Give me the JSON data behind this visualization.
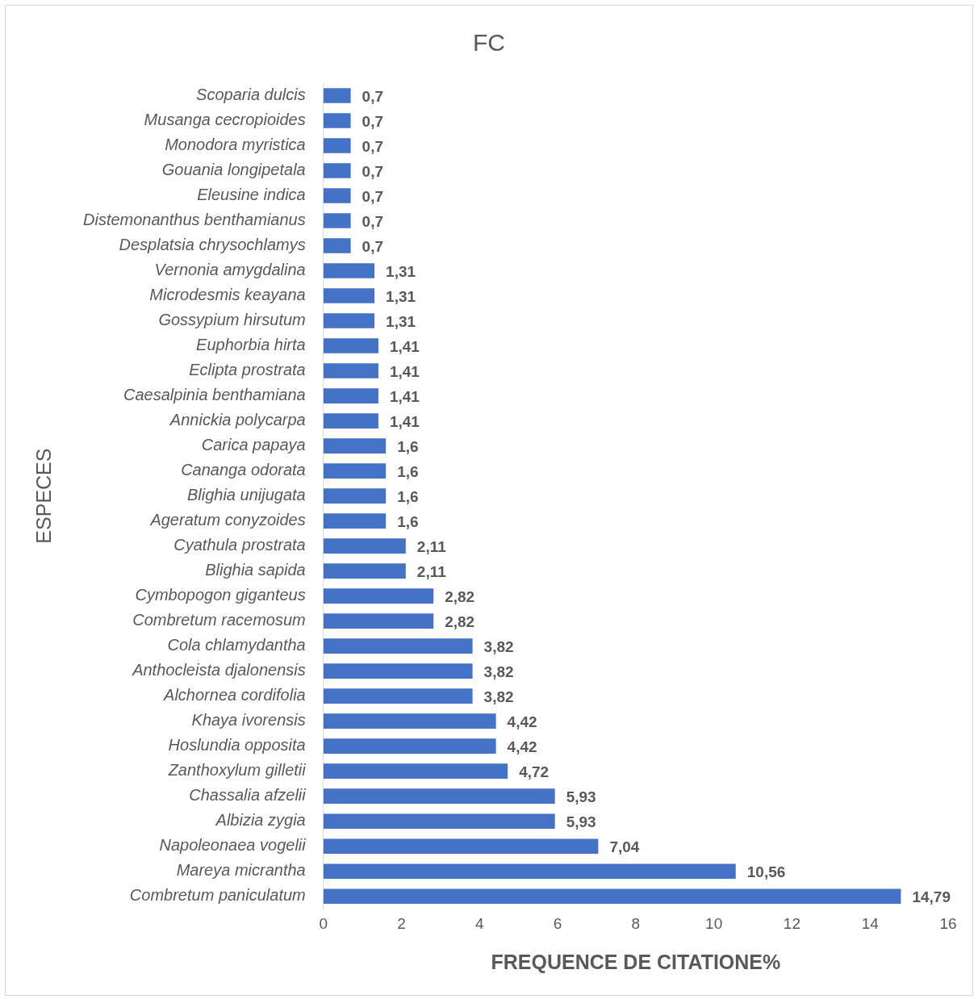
{
  "chart_data": {
    "type": "bar",
    "orientation": "horizontal",
    "title": "FC",
    "xlabel": "FREQUENCE DE CITATIONE%",
    "ylabel": "ESPECES",
    "categories": [
      "Scoparia dulcis",
      "Musanga cecropioides",
      "Monodora myristica",
      "Gouania longipetala",
      "Eleusine indica",
      "Distemonanthus benthamianus",
      "Desplatsia chrysochlamys",
      "Vernonia amygdalina",
      "Microdesmis keayana",
      "Gossypium hirsutum",
      "Euphorbia hirta",
      "Eclipta prostrata",
      "Caesalpinia benthamiana",
      "Annickia polycarpa",
      "Carica papaya",
      "Cananga odorata",
      "Blighia unijugata",
      "Ageratum conyzoides",
      "Cyathula prostrata",
      "Blighia sapida",
      "Cymbopogon giganteus",
      "Combretum racemosum",
      "Cola chlamydantha",
      "Anthocleista djalonensis",
      "Alchornea cordifolia",
      "Khaya ivorensis",
      "Hoslundia opposita",
      "Zanthoxylum gilletii",
      "Chassalia afzelii",
      "Albizia zygia",
      "Napoleonaea vogelii",
      "Mareya micrantha",
      "Combretum paniculatum"
    ],
    "values": [
      0.7,
      0.7,
      0.7,
      0.7,
      0.7,
      0.7,
      0.7,
      1.31,
      1.31,
      1.31,
      1.41,
      1.41,
      1.41,
      1.41,
      1.6,
      1.6,
      1.6,
      1.6,
      2.11,
      2.11,
      2.82,
      2.82,
      3.82,
      3.82,
      3.82,
      4.42,
      4.42,
      4.72,
      5.93,
      5.93,
      7.04,
      10.56,
      14.79
    ],
    "value_labels": [
      "0,7",
      "0,7",
      "0,7",
      "0,7",
      "0,7",
      "0,7",
      "0,7",
      "1,31",
      "1,31",
      "1,31",
      "1,41",
      "1,41",
      "1,41",
      "1,41",
      "1,6",
      "1,6",
      "1,6",
      "1,6",
      "2,11",
      "2,11",
      "2,82",
      "2,82",
      "3,82",
      "3,82",
      "3,82",
      "4,42",
      "4,42",
      "4,72",
      "5,93",
      "5,93",
      "7,04",
      "10,56",
      "14,79"
    ],
    "color": "#4472c4",
    "xlim": [
      0,
      16
    ],
    "xticks": [
      0,
      2,
      4,
      6,
      8,
      10,
      12,
      14,
      16
    ],
    "grid": false,
    "legend": false
  }
}
